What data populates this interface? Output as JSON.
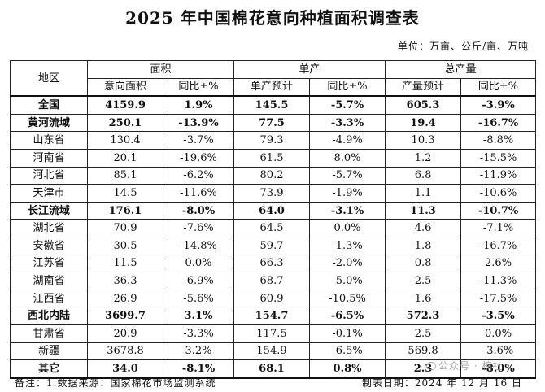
{
  "title": "2025 年中国棉花意向种植面积调查表",
  "unit": "单位：万亩、公斤/亩、万吨",
  "headers": {
    "region": "地区",
    "area": "面积",
    "yield": "单产",
    "production": "总产量",
    "area_value": "意向面积",
    "yoy": "同比±%",
    "yield_value": "单产预计",
    "production_value": "产量预计"
  },
  "rows": [
    {
      "region": "全国",
      "area": "4159.9",
      "area_yoy": "1.9%",
      "yield": "145.5",
      "yield_yoy": "-5.7%",
      "prod": "605.3",
      "prod_yoy": "-3.9%",
      "bold": true
    },
    {
      "region": "黄河流域",
      "area": "250.1",
      "area_yoy": "-13.9%",
      "yield": "77.5",
      "yield_yoy": "-3.3%",
      "prod": "19.4",
      "prod_yoy": "-16.7%",
      "bold": true
    },
    {
      "region": "山东省",
      "area": "130.4",
      "area_yoy": "-3.7%",
      "yield": "79.3",
      "yield_yoy": "-4.9%",
      "prod": "10.3",
      "prod_yoy": "-8.8%",
      "bold": false
    },
    {
      "region": "河南省",
      "area": "20.1",
      "area_yoy": "-19.6%",
      "yield": "61.5",
      "yield_yoy": "8.0%",
      "prod": "1.2",
      "prod_yoy": "-15.5%",
      "bold": false
    },
    {
      "region": "河北省",
      "area": "85.1",
      "area_yoy": "-6.2%",
      "yield": "80.2",
      "yield_yoy": "-5.7%",
      "prod": "6.8",
      "prod_yoy": "-11.9%",
      "bold": false
    },
    {
      "region": "天津市",
      "area": "14.5",
      "area_yoy": "-11.6%",
      "yield": "73.9",
      "yield_yoy": "-1.9%",
      "prod": "1.1",
      "prod_yoy": "-10.6%",
      "bold": false
    },
    {
      "region": "长江流域",
      "area": "176.1",
      "area_yoy": "-8.0%",
      "yield": "64.0",
      "yield_yoy": "-3.1%",
      "prod": "11.3",
      "prod_yoy": "-10.7%",
      "bold": true
    },
    {
      "region": "湖北省",
      "area": "70.9",
      "area_yoy": "-7.6%",
      "yield": "64.5",
      "yield_yoy": "0.0%",
      "prod": "4.6",
      "prod_yoy": "-7.1%",
      "bold": false
    },
    {
      "region": "安徽省",
      "area": "30.5",
      "area_yoy": "-14.8%",
      "yield": "59.7",
      "yield_yoy": "-1.3%",
      "prod": "1.8",
      "prod_yoy": "-16.7%",
      "bold": false
    },
    {
      "region": "江苏省",
      "area": "11.5",
      "area_yoy": "0.0%",
      "yield": "66.3",
      "yield_yoy": "-2.0%",
      "prod": "0.8",
      "prod_yoy": "2.6%",
      "bold": false
    },
    {
      "region": "湖南省",
      "area": "36.3",
      "area_yoy": "-6.9%",
      "yield": "68.7",
      "yield_yoy": "-5.0%",
      "prod": "2.5",
      "prod_yoy": "-11.3%",
      "bold": false
    },
    {
      "region": "江西省",
      "area": "26.9",
      "area_yoy": "-5.6%",
      "yield": "60.9",
      "yield_yoy": "-10.5%",
      "prod": "1.6",
      "prod_yoy": "-17.5%",
      "bold": false
    },
    {
      "region": "西北内陆",
      "area": "3699.7",
      "area_yoy": "3.1%",
      "yield": "154.7",
      "yield_yoy": "-6.5%",
      "prod": "572.3",
      "prod_yoy": "-3.5%",
      "bold": true
    },
    {
      "region": "甘肃省",
      "area": "20.9",
      "area_yoy": "-3.3%",
      "yield": "117.5",
      "yield_yoy": "-0.1%",
      "prod": "2.5",
      "prod_yoy": "0.0%",
      "bold": false
    },
    {
      "region": "新疆",
      "area": "3678.8",
      "area_yoy": "3.2%",
      "yield": "154.9",
      "yield_yoy": "-6.5%",
      "prod": "569.8",
      "prod_yoy": "-3.6%",
      "bold": false
    },
    {
      "region": "其它",
      "area": "34.0",
      "area_yoy": "-8.1%",
      "yield": "68.1",
      "yield_yoy": "0.8%",
      "prod": "2.3",
      "prod_yoy": "-8.0%",
      "bold": true
    }
  ],
  "footer": {
    "note": "备注：1.数据来源：国家棉花市场监测系统",
    "date": "制表日期：2024 年 12 月 16 日"
  },
  "watermark": "公众号 · 棉社"
}
